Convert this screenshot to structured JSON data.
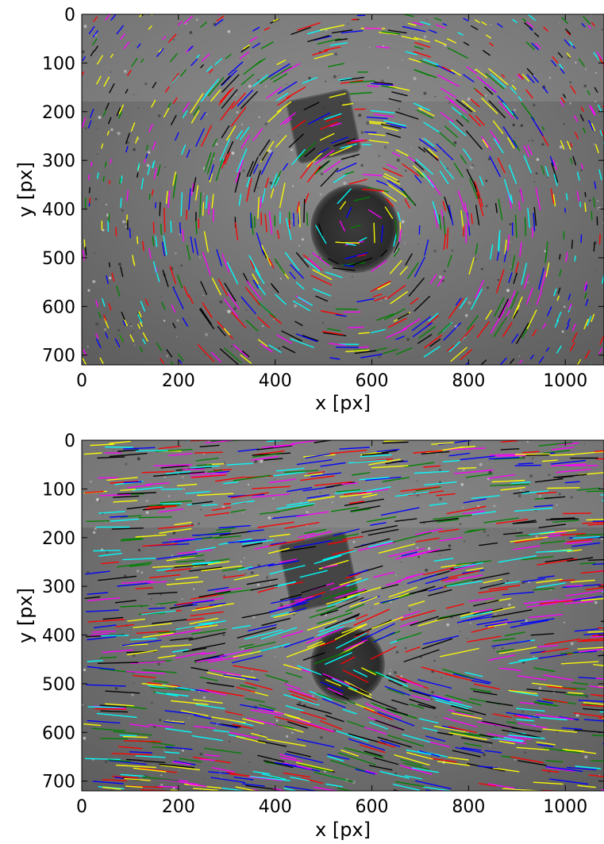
{
  "chart_data": [
    {
      "type": "scatter",
      "subtype": "particle-track overlay on grayscale photograph",
      "xlabel": "x [px]",
      "ylabel": "y [px]",
      "xlim": [
        0,
        1080
      ],
      "ylim": [
        720,
        0
      ],
      "y_inverted": true,
      "xticks": [
        0,
        200,
        400,
        600,
        800,
        1000
      ],
      "yticks": [
        0,
        100,
        200,
        300,
        400,
        500,
        600,
        700
      ],
      "grid": false,
      "legend": "none",
      "flow_pattern": "swirl",
      "vortex_center": [
        575,
        430
      ],
      "objects": [
        {
          "kind": "dark-square",
          "center": [
            500,
            230
          ],
          "size": 130
        },
        {
          "kind": "dark-disc",
          "center": [
            565,
            440
          ],
          "radius": 90
        }
      ],
      "track_colors": [
        "#0000ff",
        "#ff0000",
        "#00ffff",
        "#ff00ff",
        "#ffff00",
        "#008000",
        "#000000"
      ]
    },
    {
      "type": "scatter",
      "subtype": "particle-track overlay on grayscale photograph",
      "xlabel": "x [px]",
      "ylabel": "y [px]",
      "xlim": [
        0,
        1080
      ],
      "ylim": [
        720,
        0
      ],
      "y_inverted": true,
      "xticks": [
        0,
        200,
        400,
        600,
        800,
        1000
      ],
      "yticks": [
        0,
        100,
        200,
        300,
        400,
        500,
        600,
        700
      ],
      "grid": false,
      "legend": "none",
      "flow_pattern": "uniform flow past obstacles",
      "vortex_center": [
        550,
        460
      ],
      "objects": [
        {
          "kind": "dark-square",
          "center": [
            490,
            270
          ],
          "size": 140
        },
        {
          "kind": "dark-disc",
          "center": [
            550,
            460
          ],
          "radius": 75
        }
      ],
      "track_colors": [
        "#0000ff",
        "#ff0000",
        "#00ffff",
        "#ff00ff",
        "#ffff00",
        "#008000",
        "#000000"
      ]
    }
  ]
}
